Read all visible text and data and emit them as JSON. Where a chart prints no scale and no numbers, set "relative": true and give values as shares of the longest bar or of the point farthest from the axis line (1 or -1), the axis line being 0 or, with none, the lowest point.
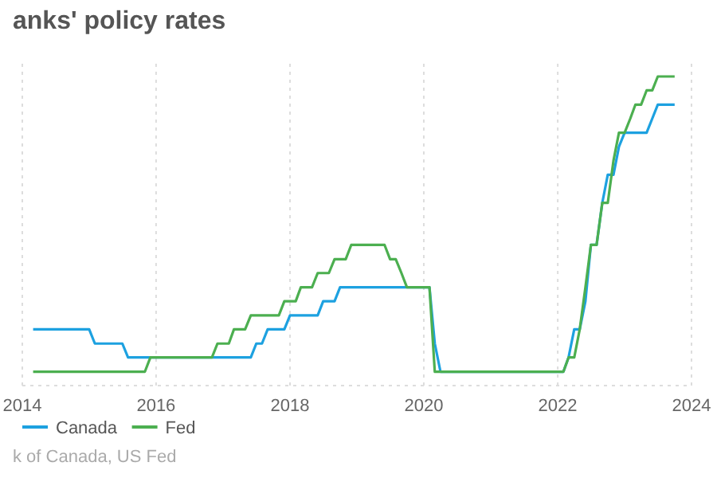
{
  "chart_data": {
    "type": "line",
    "title": "anks' policy rates",
    "relative": true,
    "grid": "x",
    "legend": "bottom left",
    "line_style": "solid",
    "xlim": [
      "2014-01",
      "2024-01"
    ],
    "xticks": [
      "2014",
      "2016",
      "2018",
      "2020",
      "2022",
      "2024"
    ],
    "annotations": [
      "k of Canada, US Fed"
    ],
    "series": [
      {
        "name": "Canada",
        "color": "#1da1e0",
        "x": [
          "2014-03",
          "2015-01",
          "2015-02",
          "2015-07",
          "2015-08",
          "2017-06",
          "2017-07",
          "2017-08",
          "2017-09",
          "2017-12",
          "2018-01",
          "2018-06",
          "2018-07",
          "2018-09",
          "2018-10",
          "2020-02",
          "2020-03",
          "2020-04",
          "2022-02",
          "2022-03",
          "2022-04",
          "2022-05",
          "2022-06",
          "2022-07",
          "2022-08",
          "2022-09",
          "2022-10",
          "2022-11",
          "2022-12",
          "2023-01",
          "2023-05",
          "2023-06",
          "2023-07",
          "2023-10"
        ],
        "values": [
          0.182,
          0.182,
          0.136,
          0.136,
          0.091,
          0.091,
          0.136,
          0.136,
          0.182,
          0.182,
          0.227,
          0.227,
          0.273,
          0.273,
          0.318,
          0.318,
          0.136,
          0.045,
          0.045,
          0.091,
          0.182,
          0.182,
          0.273,
          0.455,
          0.455,
          0.591,
          0.682,
          0.682,
          0.773,
          0.818,
          0.818,
          0.864,
          0.909,
          0.909
        ]
      },
      {
        "name": "Fed",
        "color": "#4caf50",
        "x": [
          "2014-03",
          "2015-11",
          "2015-12",
          "2016-11",
          "2016-12",
          "2017-02",
          "2017-03",
          "2017-05",
          "2017-06",
          "2017-11",
          "2017-12",
          "2018-02",
          "2018-03",
          "2018-05",
          "2018-06",
          "2018-08",
          "2018-09",
          "2018-11",
          "2018-12",
          "2019-06",
          "2019-07",
          "2019-08",
          "2019-09",
          "2019-10",
          "2020-02",
          "2020-03",
          "2022-02",
          "2022-03",
          "2022-04",
          "2022-05",
          "2022-06",
          "2022-07",
          "2022-08",
          "2022-09",
          "2022-10",
          "2022-11",
          "2022-12",
          "2023-01",
          "2023-02",
          "2023-03",
          "2023-04",
          "2023-05",
          "2023-06",
          "2023-07",
          "2023-10"
        ],
        "values": [
          0.045,
          0.045,
          0.091,
          0.091,
          0.136,
          0.136,
          0.182,
          0.182,
          0.227,
          0.227,
          0.273,
          0.273,
          0.318,
          0.318,
          0.364,
          0.364,
          0.409,
          0.409,
          0.455,
          0.455,
          0.409,
          0.409,
          0.364,
          0.318,
          0.318,
          0.045,
          0.045,
          0.091,
          0.091,
          0.182,
          0.318,
          0.455,
          0.455,
          0.591,
          0.591,
          0.727,
          0.818,
          0.818,
          0.864,
          0.909,
          0.909,
          0.955,
          0.955,
          1,
          1
        ]
      }
    ]
  }
}
